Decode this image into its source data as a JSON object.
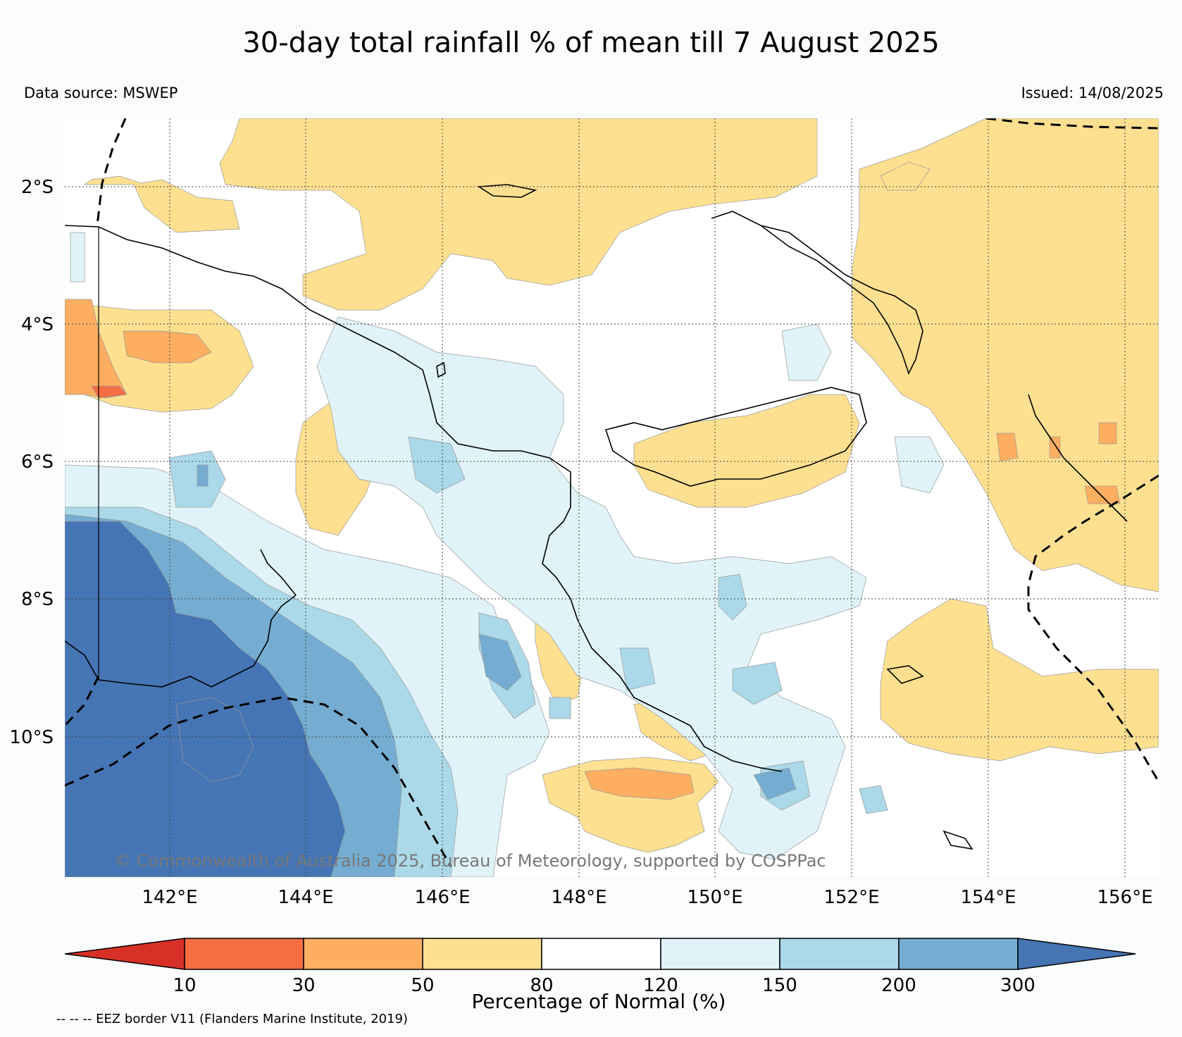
{
  "header": {
    "title": "30-day total rainfall % of mean till 7 August 2025",
    "data_source": "Data source: MSWEP",
    "issued": "Issued: 14/08/2025"
  },
  "map": {
    "lat_ticks": [
      "2°S",
      "4°S",
      "6°S",
      "8°S",
      "10°S"
    ],
    "lon_ticks": [
      "142°E",
      "144°E",
      "146°E",
      "148°E",
      "150°E",
      "152°E",
      "154°E",
      "156°E"
    ],
    "watermark": "© Commonwealth of Australia 2025, Bureau of Meteorology, supported by COSPPac",
    "lon_range": [
      140.4,
      156.5
    ],
    "lat_range": [
      -1.0,
      -12.1
    ]
  },
  "colorbar": {
    "label": "Percentage of Normal (%)",
    "ticks": [
      "10",
      "30",
      "50",
      "80",
      "120",
      "150",
      "200",
      "300"
    ],
    "colors": [
      "#d73027",
      "#f46d43",
      "#fdae61",
      "#fee090",
      "#ffffff",
      "#e0f3f8",
      "#abd9e9",
      "#74add1",
      "#4575b4"
    ]
  },
  "footer": {
    "eez_note": "-- -- -- EEZ border V11 (Flanders Marine Institute, 2019)"
  }
}
